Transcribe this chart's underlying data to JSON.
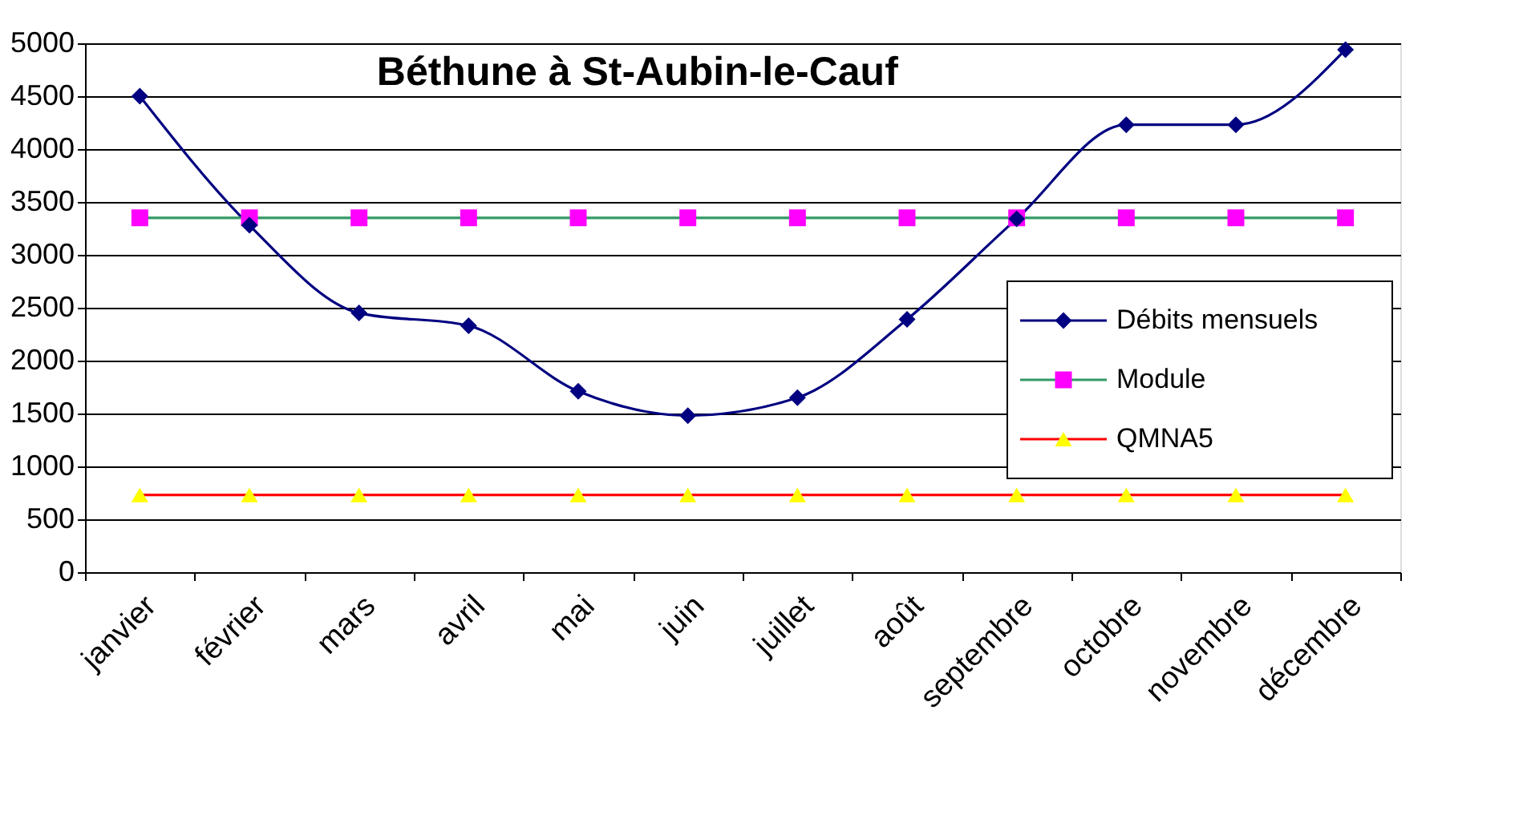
{
  "chart_data": {
    "type": "line",
    "title": "Béthune à St-Aubin-le-Cauf",
    "categories": [
      "janvier",
      "février",
      "mars",
      "avril",
      "mai",
      "juin",
      "juillet",
      "août",
      "septembre",
      "octobre",
      "novembre",
      "décembre"
    ],
    "series": [
      {
        "name": "Débits mensuels",
        "color": "#000080",
        "marker": "diamond",
        "values": [
          4500,
          3280,
          2450,
          2330,
          1710,
          1480,
          1650,
          2390,
          3340,
          4230,
          4230,
          4940
        ]
      },
      {
        "name": "Module",
        "color": "#339966",
        "colors": [
          "#ff00ff",
          "#ff00ff",
          "#ff00ff",
          "#ff00ff",
          "#ff00ff",
          "#ff00ff",
          "#ff00ff",
          "#ff00ff",
          "#ff00ff",
          "#ff00ff",
          "#ff00ff",
          "#ff00ff"
        ],
        "marker": "square",
        "values": [
          3350,
          3350,
          3350,
          3350,
          3350,
          3350,
          3350,
          3350,
          3350,
          3350,
          3350,
          3350
        ]
      },
      {
        "name": "QMNA5",
        "color": "#ff0000",
        "colors": [
          "#ffff00",
          "#ffff00",
          "#ffff00",
          "#ffff00",
          "#ffff00",
          "#ffff00",
          "#ffff00",
          "#ffff00",
          "#ffff00",
          "#ffff00",
          "#ffff00",
          "#ffff00"
        ],
        "marker": "triangle",
        "values": [
          730,
          730,
          730,
          730,
          730,
          730,
          730,
          730,
          730,
          730,
          730,
          730
        ]
      }
    ],
    "ylim": [
      0,
      5000
    ],
    "yticks": [
      0,
      500,
      1000,
      1500,
      2000,
      2500,
      3000,
      3500,
      4000,
      4500,
      5000
    ],
    "grid": "y",
    "legend": "right",
    "line_style": "solid"
  }
}
